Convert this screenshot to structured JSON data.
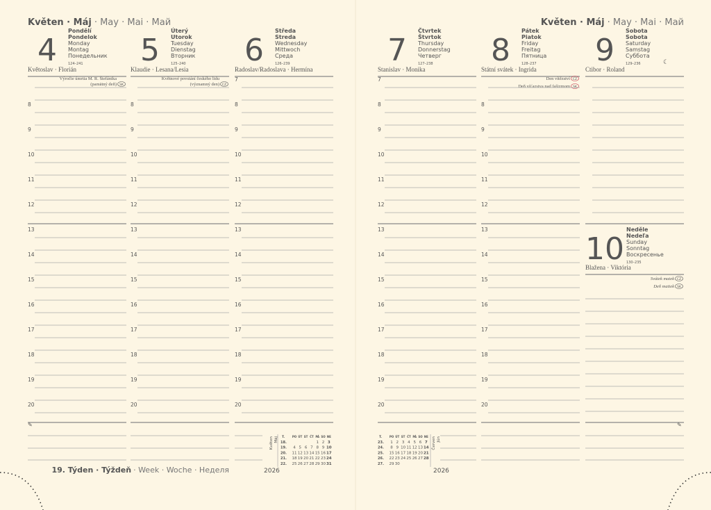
{
  "header": {
    "month": "Květen · Máj",
    "month_other": "· May · Mai · Май"
  },
  "days": [
    {
      "number": "4",
      "weekday": [
        "Pondělí",
        "Pondelok",
        "Monday",
        "Montag",
        "Понедельник"
      ],
      "day_of_year": "124–241",
      "nameday": "Květoslav · Florián",
      "notes": [
        {
          "lines": [
            "Výročie úmrtia M. R. Štefánika",
            "(pamätný deň)"
          ],
          "badge": "SK"
        }
      ]
    },
    {
      "number": "5",
      "weekday": [
        "Úterý",
        "Utorok",
        "Tuesday",
        "Dienstag",
        "Вторник"
      ],
      "day_of_year": "125–240",
      "nameday": "Klaudie · Lesana/Lesia",
      "notes": [
        {
          "lines": [
            "Květnové povstání českého lidu",
            "(významný den)"
          ],
          "badge": "CZ"
        }
      ]
    },
    {
      "number": "6",
      "weekday": [
        "Středa",
        "Streda",
        "Wednesday",
        "Mittwoch",
        "Среда"
      ],
      "day_of_year": "126–239",
      "nameday": "Radoslav/Radoslava · Hermína",
      "notes": []
    },
    {
      "number": "7",
      "weekday": [
        "Čtvrtek",
        "Štvrtok",
        "Thursday",
        "Donnerstag",
        "Четверг"
      ],
      "day_of_year": "127–238",
      "nameday": "Stanislav · Monika",
      "notes": []
    },
    {
      "number": "8",
      "weekday": [
        "Pátek",
        "Piatok",
        "Friday",
        "Freitag",
        "Пятница"
      ],
      "day_of_year": "128–237",
      "nameday": "Státní svátek · Ingrida",
      "notes": [
        {
          "lines": [
            "Den vítězství"
          ],
          "badge": "CZ"
        },
        {
          "lines": [
            "Deň víťazstva nad fašizmom"
          ],
          "badge": "SK"
        }
      ]
    },
    {
      "number": "9",
      "weekday": [
        "Sobota",
        "Sobota",
        "Saturday",
        "Samstag",
        "Суббота"
      ],
      "day_of_year": "129–236",
      "nameday": "Ctibor · Roland",
      "notes": []
    },
    {
      "number": "10",
      "weekday": [
        "Neděle",
        "Nedeľa",
        "Sunday",
        "Sonntag",
        "Воскресенье"
      ],
      "day_of_year": "130–235",
      "nameday": "Blažena · Viktória",
      "notes": [
        {
          "lines": [
            "Svátek matek"
          ],
          "badge": "CZ"
        },
        {
          "lines": [
            "Deň matiek"
          ],
          "badge": "SK"
        }
      ]
    }
  ],
  "hours": [
    "7",
    "8",
    "9",
    "10",
    "11",
    "12",
    "13",
    "14",
    "15",
    "16",
    "17",
    "18",
    "19",
    "20"
  ],
  "footer": {
    "week": "19. Týden · Týždeň",
    "week_other": "· Week · Woche · Неделя",
    "year": "2026"
  },
  "calendars": [
    {
      "labels": [
        "Květen",
        "Máj"
      ],
      "week_header": "T.",
      "weekdays": [
        "PO",
        "ÚT",
        "ST",
        "ČT",
        "PÁ",
        "SO",
        "NE"
      ],
      "weeks": [
        {
          "week": "18.",
          "days": [
            null,
            null,
            null,
            null,
            "1",
            "2",
            "3"
          ]
        },
        {
          "week": "19.",
          "days": [
            "4",
            "5",
            "6",
            "7",
            "8",
            "9",
            "10"
          ]
        },
        {
          "week": "20.",
          "days": [
            "11",
            "12",
            "13",
            "14",
            "15",
            "16",
            "17"
          ]
        },
        {
          "week": "21.",
          "days": [
            "18",
            "19",
            "20",
            "21",
            "22",
            "23",
            "24"
          ]
        },
        {
          "week": "22.",
          "days": [
            "25",
            "26",
            "27",
            "28",
            "29",
            "30",
            "31"
          ]
        }
      ]
    },
    {
      "labels": [
        "Červen",
        "Jún"
      ],
      "week_header": "T.",
      "weekdays": [
        "PO",
        "ÚT",
        "ST",
        "ČT",
        "PÁ",
        "SO",
        "NE"
      ],
      "weeks": [
        {
          "week": "23.",
          "days": [
            "1",
            "2",
            "3",
            "4",
            "5",
            "6",
            "7"
          ]
        },
        {
          "week": "24.",
          "days": [
            "8",
            "9",
            "10",
            "11",
            "12",
            "13",
            "14"
          ]
        },
        {
          "week": "25.",
          "days": [
            "15",
            "16",
            "17",
            "18",
            "19",
            "20",
            "21"
          ]
        },
        {
          "week": "26.",
          "days": [
            "22",
            "23",
            "24",
            "25",
            "26",
            "27",
            "28"
          ]
        },
        {
          "week": "27.",
          "days": [
            "29",
            "30",
            null,
            null,
            null,
            null,
            null
          ]
        }
      ]
    }
  ]
}
